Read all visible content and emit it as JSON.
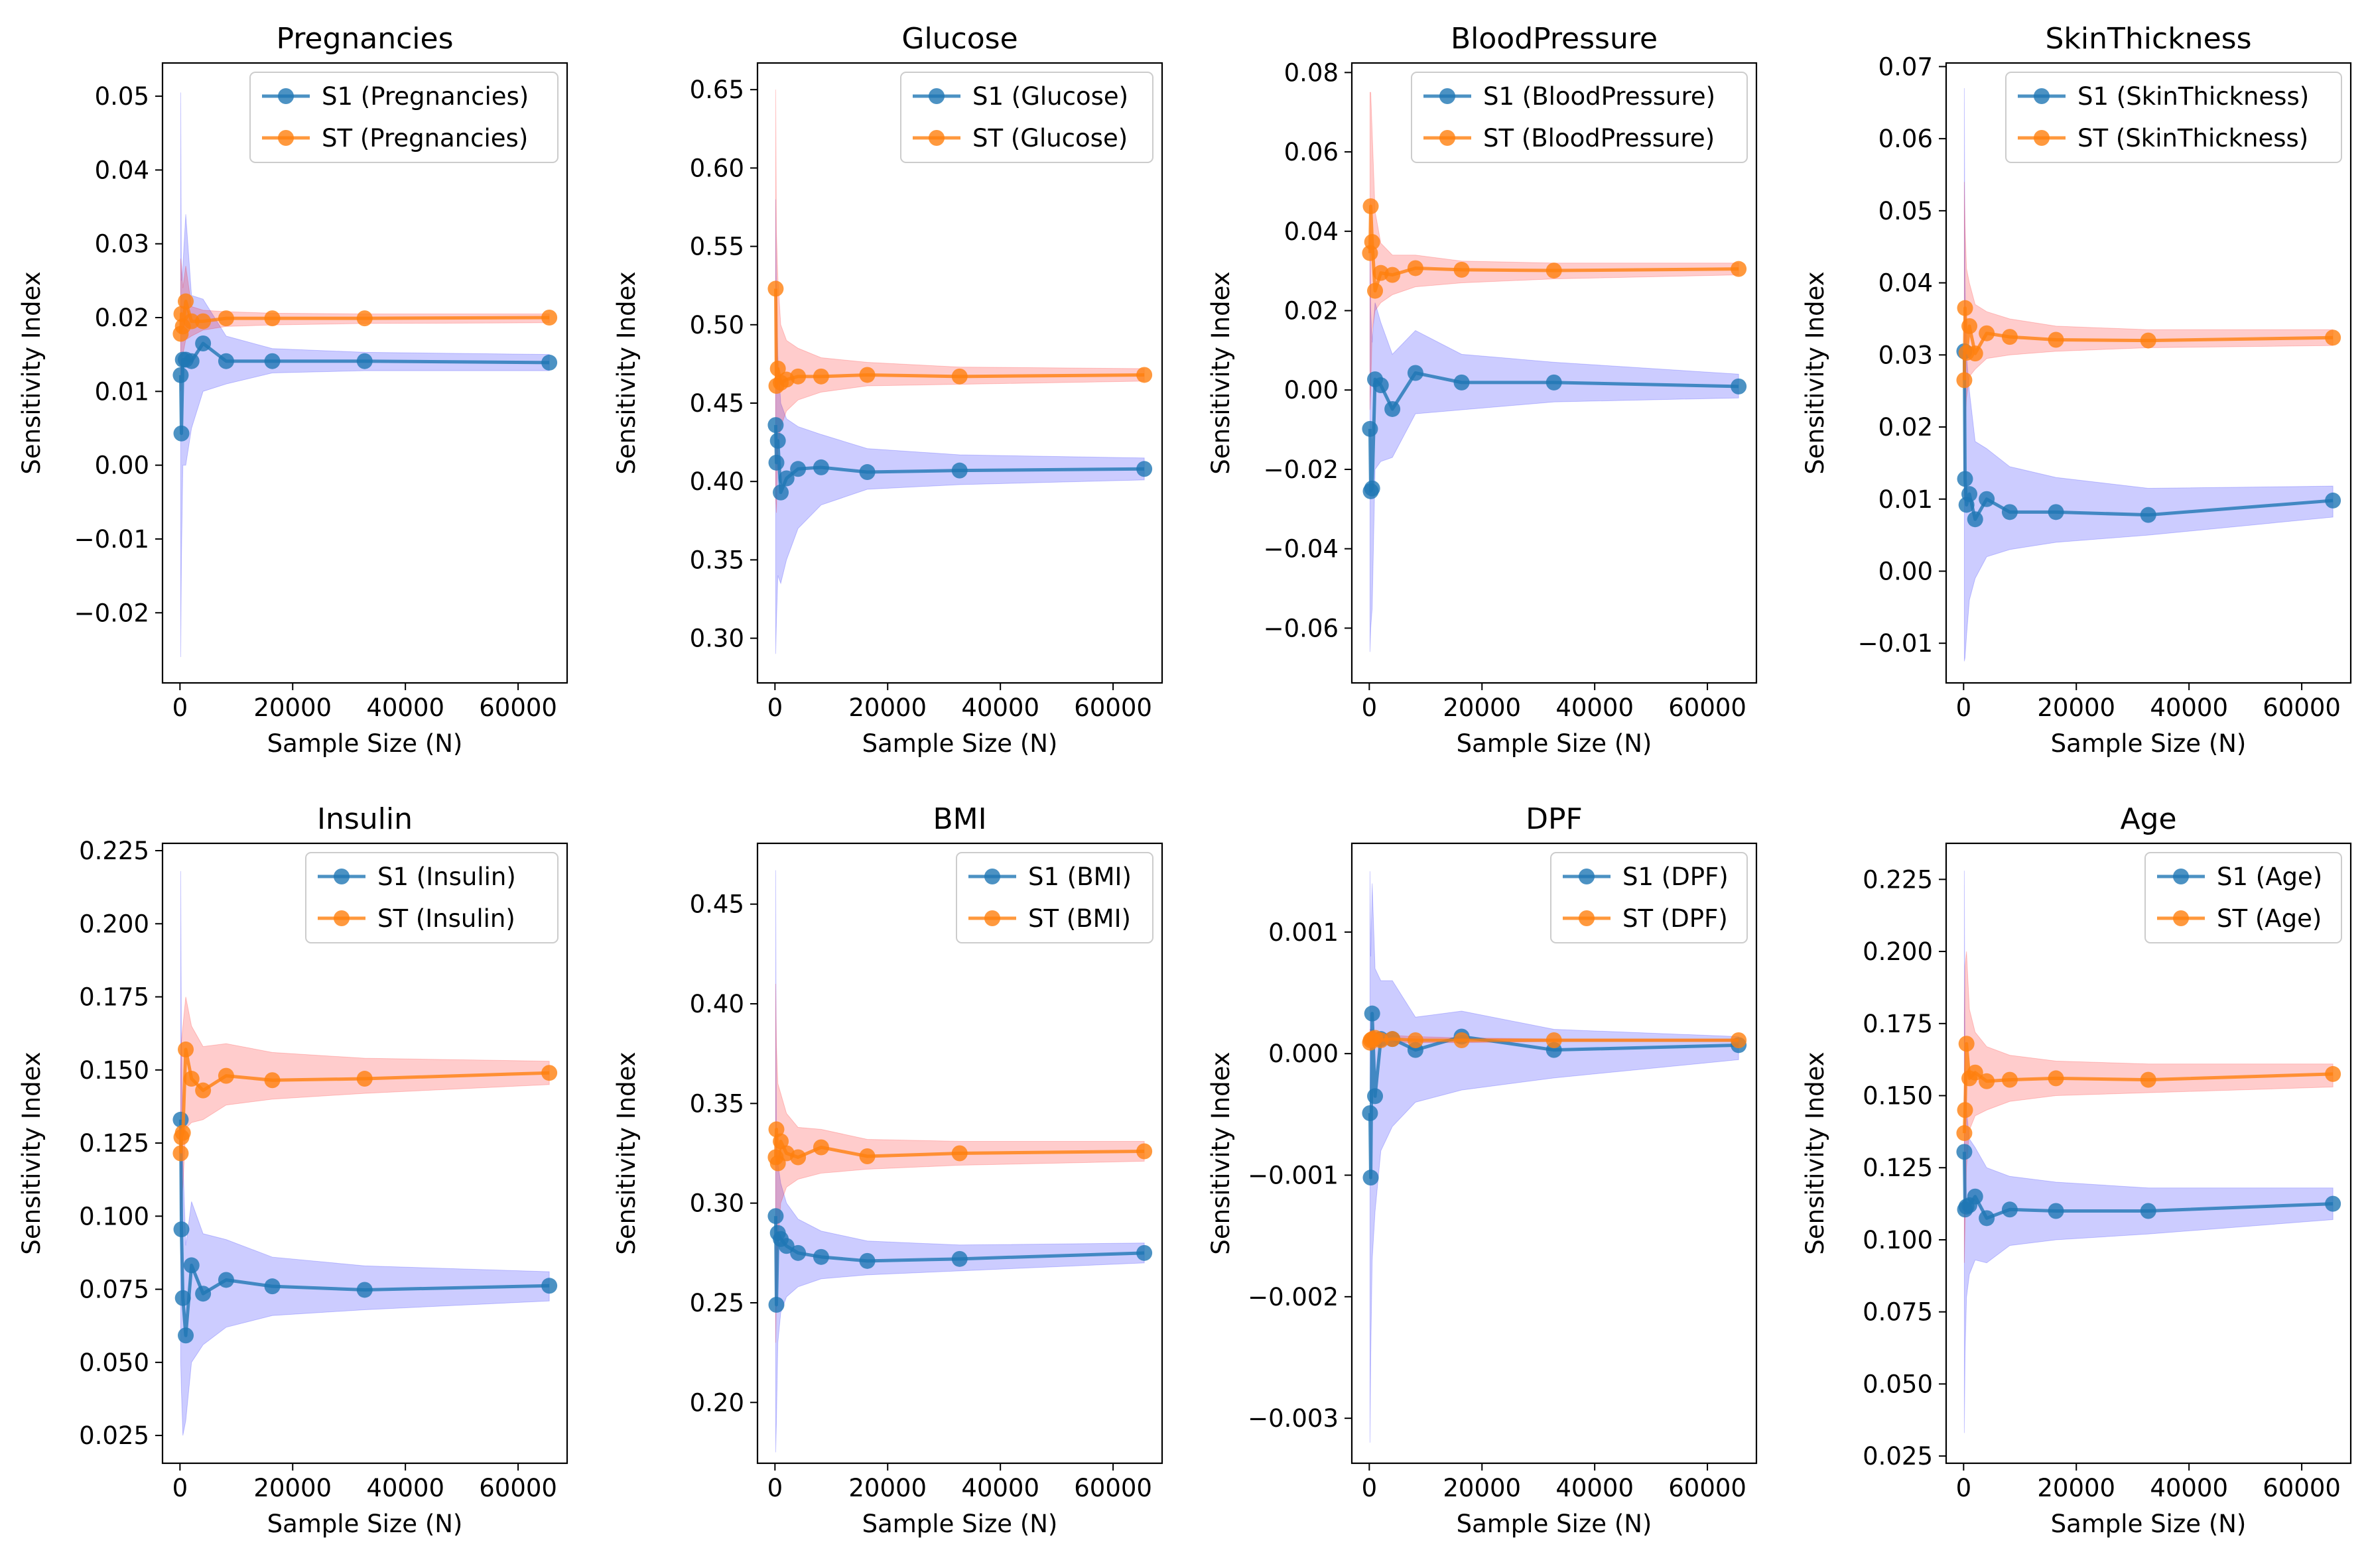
{
  "figure": {
    "xlabel": "Sample Size (N)",
    "ylabel": "Sensitivity Index"
  },
  "colors": {
    "s1_line": "#1f77b4",
    "st_line": "#ff7f0e",
    "s1_band": "#0000ff",
    "st_band": "#ff0000"
  },
  "chart_data": [
    {
      "type": "line",
      "title": "Pregnancies",
      "xlabel": "Sample Size (N)",
      "ylabel": "Sensitivity Index",
      "xlim": [
        -3100,
        68700
      ],
      "ylim": [
        -0.0295,
        0.0545
      ],
      "xticks": [
        0,
        20000,
        40000,
        60000
      ],
      "xtick_labels": [
        "0",
        "20000",
        "40000",
        "60000"
      ],
      "yticks": [
        -0.02,
        -0.01,
        0,
        0.01,
        0.02,
        0.03,
        0.04,
        0.05
      ],
      "ytick_labels": [
        "−0.02",
        "−0.01",
        "0.00",
        "0.01",
        "0.02",
        "0.03",
        "0.04",
        "0.05"
      ],
      "legend_position": "top-right",
      "x": [
        128,
        256,
        512,
        1024,
        2048,
        4096,
        8192,
        16384,
        32768,
        65536
      ],
      "series": [
        {
          "name": "S1 (Pregnancies)",
          "values": [
            0.0122,
            0.0043,
            0.0143,
            0.0143,
            0.0141,
            0.0165,
            0.0141,
            0.0141,
            0.0141,
            0.0139
          ],
          "ci_low": [
            -0.026,
            -0.013,
            0.0,
            0.0,
            0.005,
            0.01,
            0.011,
            0.0125,
            0.0128,
            0.0128
          ],
          "ci_high": [
            0.0505,
            0.025,
            0.027,
            0.034,
            0.023,
            0.0225,
            0.0175,
            0.0158,
            0.0153,
            0.015
          ]
        },
        {
          "name": "ST (Pregnancies)",
          "values": [
            0.0178,
            0.0205,
            0.0188,
            0.0222,
            0.0195,
            0.0195,
            0.0199,
            0.0199,
            0.0199,
            0.02
          ],
          "ci_low": [
            0.01,
            0.014,
            0.015,
            0.017,
            0.0175,
            0.0183,
            0.0188,
            0.019,
            0.0192,
            0.0193
          ],
          "ci_high": [
            0.028,
            0.027,
            0.024,
            0.027,
            0.0215,
            0.021,
            0.0208,
            0.0206,
            0.0205,
            0.0205
          ]
        }
      ]
    },
    {
      "type": "line",
      "title": "Glucose",
      "xlabel": "Sample Size (N)",
      "ylabel": "Sensitivity Index",
      "xlim": [
        -3100,
        68700
      ],
      "ylim": [
        0.2715,
        0.667
      ],
      "xticks": [
        0,
        20000,
        40000,
        60000
      ],
      "xtick_labels": [
        "0",
        "20000",
        "40000",
        "60000"
      ],
      "yticks": [
        0.3,
        0.35,
        0.4,
        0.45,
        0.5,
        0.55,
        0.6,
        0.65
      ],
      "ytick_labels": [
        "0.30",
        "0.35",
        "0.40",
        "0.45",
        "0.50",
        "0.55",
        "0.60",
        "0.65"
      ],
      "legend_position": "top-right",
      "x": [
        128,
        256,
        512,
        1024,
        2048,
        4096,
        8192,
        16384,
        32768,
        65536
      ],
      "series": [
        {
          "name": "S1 (Glucose)",
          "values": [
            0.436,
            0.412,
            0.426,
            0.393,
            0.402,
            0.408,
            0.409,
            0.406,
            0.407,
            0.408
          ],
          "ci_low": [
            0.29,
            0.31,
            0.34,
            0.335,
            0.35,
            0.37,
            0.385,
            0.395,
            0.398,
            0.401
          ],
          "ci_high": [
            0.58,
            0.52,
            0.48,
            0.45,
            0.44,
            0.435,
            0.43,
            0.421,
            0.417,
            0.415
          ]
        },
        {
          "name": "ST (Glucose)",
          "values": [
            0.523,
            0.461,
            0.472,
            0.463,
            0.465,
            0.467,
            0.467,
            0.468,
            0.467,
            0.468
          ],
          "ci_low": [
            0.39,
            0.38,
            0.42,
            0.435,
            0.445,
            0.452,
            0.457,
            0.461,
            0.462,
            0.464
          ],
          "ci_high": [
            0.65,
            0.56,
            0.53,
            0.5,
            0.49,
            0.485,
            0.479,
            0.476,
            0.473,
            0.472
          ]
        }
      ]
    },
    {
      "type": "line",
      "title": "BloodPressure",
      "xlabel": "Sample Size (N)",
      "ylabel": "Sensitivity Index",
      "xlim": [
        -3100,
        68700
      ],
      "ylim": [
        -0.0738,
        0.0824
      ],
      "xticks": [
        0,
        20000,
        40000,
        60000
      ],
      "xtick_labels": [
        "0",
        "20000",
        "40000",
        "60000"
      ],
      "yticks": [
        -0.06,
        -0.04,
        -0.02,
        0,
        0.02,
        0.04,
        0.06,
        0.08
      ],
      "ytick_labels": [
        "−0.06",
        "−0.04",
        "−0.02",
        "0.00",
        "0.02",
        "0.04",
        "0.06",
        "0.08"
      ],
      "legend_position": "top-right",
      "x": [
        128,
        256,
        512,
        1024,
        2048,
        4096,
        8192,
        16384,
        32768,
        65536
      ],
      "series": [
        {
          "name": "S1 (BloodPressure)",
          "values": [
            -0.0098,
            -0.0255,
            -0.0248,
            0.0027,
            0.0012,
            -0.0048,
            0.0043,
            0.0019,
            0.0019,
            0.0009
          ],
          "ci_low": [
            -0.066,
            -0.06,
            -0.055,
            -0.02,
            -0.018,
            -0.017,
            -0.006,
            -0.005,
            -0.003,
            -0.002
          ],
          "ci_high": [
            0.036,
            0.02,
            0.012,
            0.022,
            0.017,
            0.009,
            0.015,
            0.009,
            0.007,
            0.004
          ]
        },
        {
          "name": "ST (BloodPressure)",
          "values": [
            0.0345,
            0.0463,
            0.0373,
            0.025,
            0.0295,
            0.029,
            0.0307,
            0.0303,
            0.0301,
            0.0305
          ],
          "ci_low": [
            -0.005,
            0.0,
            0.015,
            0.02,
            0.022,
            0.024,
            0.026,
            0.027,
            0.028,
            0.029
          ],
          "ci_high": [
            0.075,
            0.075,
            0.065,
            0.045,
            0.037,
            0.034,
            0.034,
            0.0325,
            0.032,
            0.032
          ]
        }
      ]
    },
    {
      "type": "line",
      "title": "SkinThickness",
      "xlabel": "Sample Size (N)",
      "ylabel": "Sensitivity Index",
      "xlim": [
        -3100,
        68700
      ],
      "ylim": [
        -0.0155,
        0.0705
      ],
      "xticks": [
        0,
        20000,
        40000,
        60000
      ],
      "xtick_labels": [
        "0",
        "20000",
        "40000",
        "60000"
      ],
      "yticks": [
        -0.01,
        0,
        0.01,
        0.02,
        0.03,
        0.04,
        0.05,
        0.06,
        0.07
      ],
      "ytick_labels": [
        "−0.01",
        "0.00",
        "0.01",
        "0.02",
        "0.03",
        "0.04",
        "0.05",
        "0.06",
        "0.07"
      ],
      "legend_position": "top-right",
      "x": [
        128,
        256,
        512,
        1024,
        2048,
        4096,
        8192,
        16384,
        32768,
        65536
      ],
      "series": [
        {
          "name": "S1 (SkinThickness)",
          "values": [
            0.0305,
            0.0128,
            0.0092,
            0.0107,
            0.0072,
            0.01,
            0.0082,
            0.0082,
            0.0078,
            0.0098
          ],
          "ci_low": [
            -0.0125,
            -0.012,
            -0.009,
            -0.004,
            -0.001,
            0.002,
            0.003,
            0.004,
            0.005,
            0.0075
          ],
          "ci_high": [
            0.067,
            0.04,
            0.03,
            0.025,
            0.018,
            0.017,
            0.0145,
            0.013,
            0.0115,
            0.0118
          ]
        },
        {
          "name": "ST (SkinThickness)",
          "values": [
            0.0265,
            0.0365,
            0.0303,
            0.034,
            0.0302,
            0.033,
            0.0325,
            0.0321,
            0.032,
            0.0324
          ],
          "ci_low": [
            0.01,
            0.02,
            0.024,
            0.027,
            0.028,
            0.0295,
            0.03,
            0.0305,
            0.031,
            0.0313
          ],
          "ci_high": [
            0.054,
            0.048,
            0.042,
            0.04,
            0.037,
            0.036,
            0.035,
            0.034,
            0.0335,
            0.0335
          ]
        }
      ]
    },
    {
      "type": "line",
      "title": "Insulin",
      "xlabel": "Sample Size (N)",
      "ylabel": "Sensitivity Index",
      "xlim": [
        -3100,
        68700
      ],
      "ylim": [
        0.0155,
        0.2275
      ],
      "xticks": [
        0,
        20000,
        40000,
        60000
      ],
      "xtick_labels": [
        "0",
        "20000",
        "40000",
        "60000"
      ],
      "yticks": [
        0.025,
        0.05,
        0.075,
        0.1,
        0.125,
        0.15,
        0.175,
        0.2,
        0.225
      ],
      "ytick_labels": [
        "0.025",
        "0.050",
        "0.075",
        "0.100",
        "0.125",
        "0.150",
        "0.175",
        "0.200",
        "0.225"
      ],
      "legend_position": "top-right",
      "x": [
        128,
        256,
        512,
        1024,
        2048,
        4096,
        8192,
        16384,
        32768,
        65536
      ],
      "series": [
        {
          "name": "S1 (Insulin)",
          "values": [
            0.133,
            0.0955,
            0.072,
            0.0592,
            0.0832,
            0.0735,
            0.0782,
            0.076,
            0.0748,
            0.0762
          ],
          "ci_low": [
            0.05,
            0.04,
            0.025,
            0.03,
            0.05,
            0.056,
            0.062,
            0.066,
            0.068,
            0.071
          ],
          "ci_high": [
            0.218,
            0.16,
            0.12,
            0.09,
            0.105,
            0.094,
            0.092,
            0.086,
            0.083,
            0.081
          ]
        },
        {
          "name": "ST (Insulin)",
          "values": [
            0.1215,
            0.127,
            0.1285,
            0.157,
            0.147,
            0.143,
            0.148,
            0.1465,
            0.147,
            0.149
          ],
          "ci_low": [
            0.1,
            0.105,
            0.11,
            0.13,
            0.132,
            0.133,
            0.138,
            0.14,
            0.142,
            0.145
          ],
          "ci_high": [
            0.15,
            0.16,
            0.165,
            0.175,
            0.165,
            0.158,
            0.159,
            0.156,
            0.154,
            0.153
          ]
        }
      ]
    },
    {
      "type": "line",
      "title": "BMI",
      "xlabel": "Sample Size (N)",
      "ylabel": "Sensitivity Index",
      "xlim": [
        -3100,
        68700
      ],
      "ylim": [
        0.1695,
        0.4805
      ],
      "xticks": [
        0,
        20000,
        40000,
        60000
      ],
      "xtick_labels": [
        "0",
        "20000",
        "40000",
        "60000"
      ],
      "yticks": [
        0.2,
        0.25,
        0.3,
        0.35,
        0.4,
        0.45
      ],
      "ytick_labels": [
        "0.20",
        "0.25",
        "0.30",
        "0.35",
        "0.40",
        "0.45"
      ],
      "legend_position": "top-right",
      "x": [
        128,
        256,
        512,
        1024,
        2048,
        4096,
        8192,
        16384,
        32768,
        65536
      ],
      "series": [
        {
          "name": "S1 (BMI)",
          "values": [
            0.2935,
            0.249,
            0.285,
            0.282,
            0.2785,
            0.275,
            0.273,
            0.271,
            0.272,
            0.275
          ],
          "ci_low": [
            0.175,
            0.19,
            0.23,
            0.245,
            0.253,
            0.258,
            0.262,
            0.264,
            0.266,
            0.27
          ],
          "ci_high": [
            0.467,
            0.33,
            0.32,
            0.31,
            0.3,
            0.292,
            0.286,
            0.281,
            0.279,
            0.28
          ]
        },
        {
          "name": "ST (BMI)",
          "values": [
            0.323,
            0.337,
            0.32,
            0.331,
            0.325,
            0.323,
            0.328,
            0.3235,
            0.325,
            0.326
          ],
          "ci_low": [
            0.23,
            0.255,
            0.28,
            0.3,
            0.308,
            0.312,
            0.315,
            0.317,
            0.319,
            0.321
          ],
          "ci_high": [
            0.41,
            0.38,
            0.36,
            0.355,
            0.345,
            0.338,
            0.337,
            0.332,
            0.331,
            0.331
          ]
        }
      ]
    },
    {
      "type": "line",
      "title": "DPF",
      "xlabel": "Sample Size (N)",
      "ylabel": "Sensitivity Index",
      "xlim": [
        -3100,
        68700
      ],
      "ylim": [
        -0.00337,
        0.00173
      ],
      "xticks": [
        0,
        20000,
        40000,
        60000
      ],
      "xtick_labels": [
        "0",
        "20000",
        "40000",
        "60000"
      ],
      "yticks": [
        -0.003,
        -0.002,
        -0.001,
        0,
        0.001
      ],
      "ytick_labels": [
        "−0.003",
        "−0.002",
        "−0.001",
        "0.000",
        "0.001"
      ],
      "legend_position": "top-right",
      "x": [
        128,
        256,
        512,
        1024,
        2048,
        4096,
        8192,
        16384,
        32768,
        65536
      ],
      "series": [
        {
          "name": "S1 (DPF)",
          "values": [
            -0.00049,
            -0.00102,
            0.00033,
            -0.00035,
            0.00012,
            0.00012,
            3e-05,
            0.00014,
            3e-05,
            7e-05
          ],
          "ci_low": [
            -0.0032,
            -0.0025,
            -0.0017,
            -0.0013,
            -0.0008,
            -0.0006,
            -0.0004,
            -0.0003,
            -0.0002,
            -5e-05
          ],
          "ci_high": [
            0.0015,
            0.0008,
            0.0014,
            0.0007,
            0.0006,
            0.0006,
            0.0003,
            0.00035,
            0.0002,
            0.00014
          ]
        },
        {
          "name": "ST (DPF)",
          "values": [
            9e-05,
            0.00011,
            0.00012,
            0.00013,
            0.00011,
            0.00012,
            0.00011,
            0.00011,
            0.00011,
            0.00011
          ],
          "ci_low": [
            2e-05,
            4e-05,
            6e-05,
            8e-05,
            8e-05,
            9e-05,
            9e-05,
            9e-05,
            0.0001,
            0.0001
          ],
          "ci_high": [
            0.0002,
            0.0002,
            0.0002,
            0.00018,
            0.00015,
            0.00015,
            0.00014,
            0.00013,
            0.00012,
            0.00012
          ]
        }
      ]
    },
    {
      "type": "line",
      "title": "Age",
      "xlabel": "Sample Size (N)",
      "ylabel": "Sensitivity Index",
      "xlim": [
        -3100,
        68700
      ],
      "ylim": [
        0.0225,
        0.2375
      ],
      "xticks": [
        0,
        20000,
        40000,
        60000
      ],
      "xtick_labels": [
        "0",
        "20000",
        "40000",
        "60000"
      ],
      "yticks": [
        0.025,
        0.05,
        0.075,
        0.1,
        0.125,
        0.15,
        0.175,
        0.2,
        0.225
      ],
      "ytick_labels": [
        "0.025",
        "0.050",
        "0.075",
        "0.100",
        "0.125",
        "0.150",
        "0.175",
        "0.200",
        "0.225"
      ],
      "legend_position": "top-right",
      "x": [
        128,
        256,
        512,
        1024,
        2048,
        4096,
        8192,
        16384,
        32768,
        65536
      ],
      "series": [
        {
          "name": "S1 (Age)",
          "values": [
            0.1305,
            0.1105,
            0.1115,
            0.112,
            0.115,
            0.1075,
            0.1105,
            0.11,
            0.11,
            0.1125
          ],
          "ci_low": [
            0.033,
            0.06,
            0.08,
            0.088,
            0.093,
            0.092,
            0.098,
            0.1,
            0.102,
            0.107
          ],
          "ci_high": [
            0.228,
            0.16,
            0.145,
            0.135,
            0.132,
            0.125,
            0.122,
            0.12,
            0.118,
            0.118
          ]
        },
        {
          "name": "ST (Age)",
          "values": [
            0.137,
            0.145,
            0.168,
            0.156,
            0.158,
            0.155,
            0.1555,
            0.156,
            0.1555,
            0.1575
          ],
          "ci_low": [
            0.092,
            0.105,
            0.125,
            0.138,
            0.143,
            0.145,
            0.148,
            0.15,
            0.151,
            0.153
          ],
          "ci_high": [
            0.178,
            0.195,
            0.2,
            0.18,
            0.172,
            0.167,
            0.164,
            0.162,
            0.161,
            0.161
          ]
        }
      ]
    }
  ]
}
